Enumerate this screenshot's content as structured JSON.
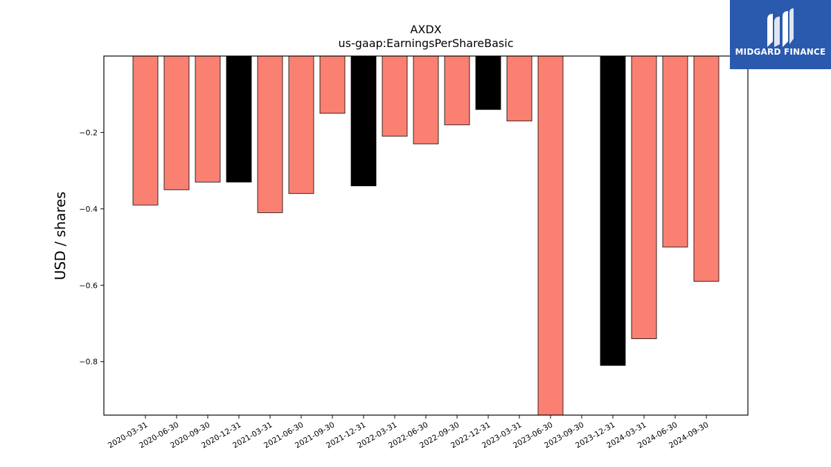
{
  "logo": {
    "text": "MIDGARD FINANCE"
  },
  "colors": {
    "positive_bar": "#fa8072",
    "highlight_bar": "#000000",
    "logo_bg": "#2a5aad"
  },
  "chart_data": {
    "type": "bar",
    "title": "AXDX",
    "subtitle": "us-gaap:EarningsPerShareBasic",
    "xlabel": "",
    "ylabel": "USD / shares",
    "ylim": [
      -0.94,
      0.0
    ],
    "yticks": [
      -0.8,
      -0.6,
      -0.4,
      -0.2
    ],
    "ytick_labels": [
      "−0.8",
      "−0.6",
      "−0.4",
      "−0.2"
    ],
    "grid": false,
    "categories": [
      "2020-03-31",
      "2020-06-30",
      "2020-09-30",
      "2020-12-31",
      "2021-03-31",
      "2021-06-30",
      "2021-09-30",
      "2021-12-31",
      "2022-03-31",
      "2022-06-30",
      "2022-09-30",
      "2022-12-31",
      "2023-03-31",
      "2023-06-30",
      "2023-09-30",
      "2023-12-31",
      "2024-03-31",
      "2024-06-30",
      "2024-09-30"
    ],
    "values": [
      -0.39,
      -0.35,
      -0.33,
      -0.33,
      -0.41,
      -0.36,
      -0.15,
      -0.34,
      -0.21,
      -0.23,
      -0.18,
      -0.14,
      -0.17,
      -0.95,
      null,
      -0.81,
      -0.74,
      -0.5,
      -0.59
    ],
    "highlight": [
      false,
      false,
      false,
      true,
      false,
      false,
      false,
      true,
      false,
      false,
      false,
      true,
      false,
      false,
      false,
      true,
      false,
      false,
      false
    ]
  }
}
